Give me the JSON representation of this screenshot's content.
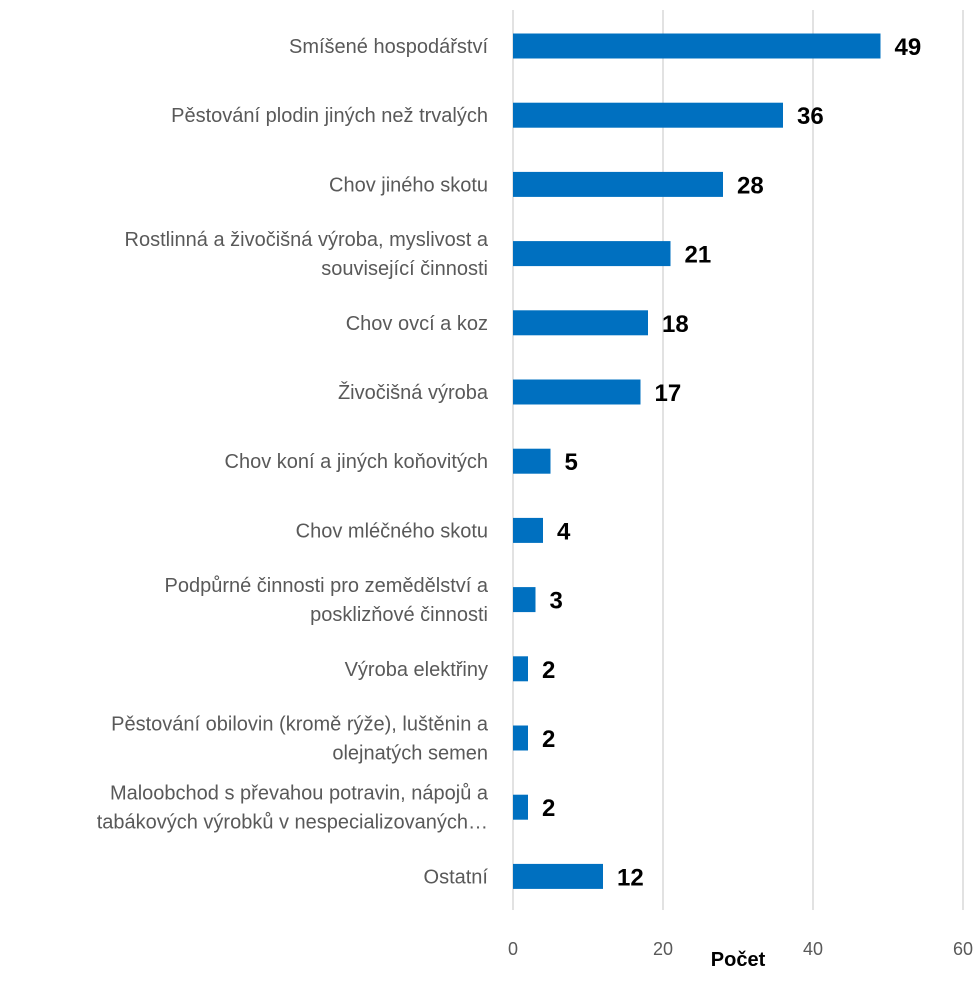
{
  "chart_data": {
    "type": "bar",
    "orientation": "horizontal",
    "categories": [
      [
        "Smíšené hospodářství"
      ],
      [
        "Pěstování plodin jiných než trvalých"
      ],
      [
        "Chov jiného skotu"
      ],
      [
        "Rostlinná a živočišná výroba, myslivost a",
        "související činnosti"
      ],
      [
        "Chov ovcí a koz"
      ],
      [
        "Živočišná výroba"
      ],
      [
        "Chov koní a jiných koňovitých"
      ],
      [
        "Chov mléčného skotu"
      ],
      [
        "Podpůrné činnosti pro zemědělství a",
        "posklizňové činnosti"
      ],
      [
        "Výroba elektřiny"
      ],
      [
        "Pěstování obilovin (kromě rýže), luštěnin a",
        "olejnatých semen"
      ],
      [
        "Maloobchod s převahou potravin, nápojů a",
        "tabákových výrobků v nespecializovaných…"
      ],
      [
        "Ostatní"
      ]
    ],
    "values": [
      49,
      36,
      28,
      21,
      18,
      17,
      5,
      4,
      3,
      2,
      2,
      2,
      12
    ],
    "xlabel": "Počet",
    "ylabel": "",
    "xlim": [
      0,
      60
    ],
    "xticks": [
      0,
      20,
      40,
      60
    ],
    "grid": true,
    "bar_color": "#0070C0"
  }
}
